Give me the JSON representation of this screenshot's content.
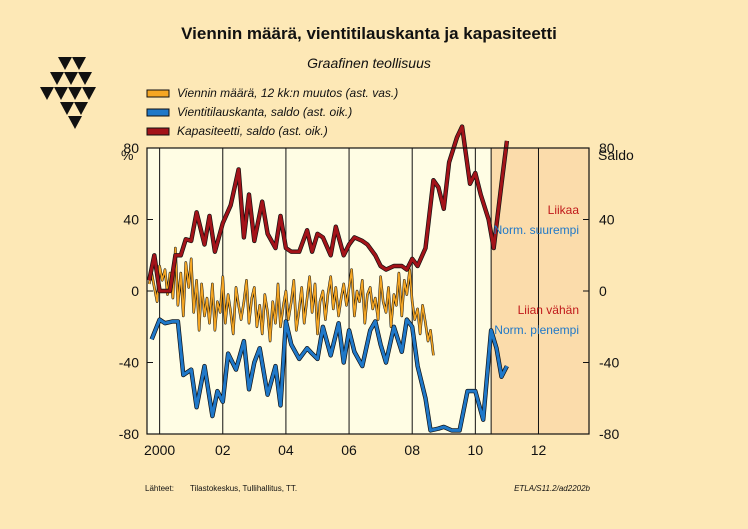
{
  "chart_data": {
    "type": "line",
    "title": "Viennin määrä, vientitilauskanta ja kapasiteetti",
    "subtitle": "Graafinen teollisuus",
    "y_left_label": "%",
    "y_right_label": "Saldo",
    "ylim": [
      -80,
      80
    ],
    "y_ticks": [
      -80,
      -40,
      0,
      40,
      80
    ],
    "y_tick_labels": [
      "-80",
      "-40",
      "0",
      "40",
      "80"
    ],
    "xlim": [
      1999.6,
      2013.6
    ],
    "x_ticks": [
      2000,
      2002,
      2004,
      2006,
      2008,
      2010,
      2012
    ],
    "x_tick_labels": [
      "2000",
      "02",
      "04",
      "06",
      "08",
      "10",
      "12"
    ],
    "forecast_start": 2010.5,
    "forecast_color": "#fbdcab",
    "plot_background": "#fffde4",
    "legend": [
      {
        "label": "Viennin määrä, 12 kk:n muutos (ast. vas.)",
        "color": "#f5a623"
      },
      {
        "label": "Vientitilauskanta, saldo (ast. oik.)",
        "color": "#1f78c8"
      },
      {
        "label": "Kapasiteetti, saldo (ast. oik.)",
        "color": "#a31319"
      }
    ],
    "annotations": [
      {
        "text": "Liikaa",
        "color": "#c0181a",
        "y": 43
      },
      {
        "text": "Norm. suurempi",
        "color": "#1f78c8",
        "y": 32
      },
      {
        "text": "Liian vähän",
        "color": "#c0181a",
        "y": -13
      },
      {
        "text": "Norm. pienempi",
        "color": "#1f78c8",
        "y": -24
      }
    ],
    "series": [
      {
        "name": "Viennin määrä, 12 kk:n muutos (ast. vas.)",
        "color": "#f5a623",
        "x": [
          1999.67,
          1999.75,
          1999.83,
          1999.92,
          2000.0,
          2000.08,
          2000.17,
          2000.25,
          2000.33,
          2000.42,
          2000.5,
          2000.58,
          2000.67,
          2000.75,
          2000.83,
          2000.92,
          2001.0,
          2001.08,
          2001.17,
          2001.25,
          2001.33,
          2001.42,
          2001.5,
          2001.58,
          2001.67,
          2001.75,
          2001.83,
          2001.92,
          2002.0,
          2002.08,
          2002.17,
          2002.25,
          2002.33,
          2002.42,
          2002.5,
          2002.58,
          2002.67,
          2002.75,
          2002.83,
          2002.92,
          2003.0,
          2003.08,
          2003.17,
          2003.25,
          2003.33,
          2003.42,
          2003.5,
          2003.58,
          2003.67,
          2003.75,
          2003.83,
          2003.92,
          2004.0,
          2004.08,
          2004.17,
          2004.25,
          2004.33,
          2004.42,
          2004.5,
          2004.58,
          2004.67,
          2004.75,
          2004.83,
          2004.92,
          2005.0,
          2005.08,
          2005.17,
          2005.25,
          2005.33,
          2005.42,
          2005.5,
          2005.58,
          2005.67,
          2005.75,
          2005.83,
          2005.92,
          2006.0,
          2006.08,
          2006.17,
          2006.25,
          2006.33,
          2006.42,
          2006.5,
          2006.58,
          2006.67,
          2006.75,
          2006.83,
          2006.92,
          2007.0,
          2007.08,
          2007.17,
          2007.25,
          2007.33,
          2007.42,
          2007.5,
          2007.58,
          2007.67,
          2007.75,
          2007.83,
          2007.92,
          2008.0,
          2008.08,
          2008.17,
          2008.25,
          2008.33,
          2008.42,
          2008.5,
          2008.58,
          2008.67
        ],
        "y": [
          4,
          10,
          2,
          -6,
          14,
          6,
          12,
          -2,
          10,
          -4,
          24,
          -8,
          10,
          -14,
          16,
          2,
          18,
          -12,
          6,
          -22,
          4,
          -14,
          -4,
          -18,
          4,
          -22,
          -6,
          -12,
          8,
          -18,
          -2,
          -12,
          -24,
          2,
          -8,
          -16,
          -6,
          6,
          -18,
          -4,
          2,
          -20,
          -8,
          -24,
          -2,
          -12,
          -28,
          -6,
          -18,
          4,
          -20,
          -8,
          0,
          -16,
          -6,
          6,
          -22,
          -10,
          2,
          -18,
          -4,
          8,
          -12,
          4,
          -24,
          -6,
          0,
          -16,
          -2,
          8,
          -10,
          2,
          -14,
          -4,
          4,
          -8,
          2,
          12,
          -14,
          0,
          -6,
          6,
          -18,
          -2,
          2,
          -10,
          -4,
          -16,
          8,
          -6,
          -12,
          2,
          -20,
          -2,
          -8,
          10,
          -14,
          6,
          -2,
          12,
          -6,
          -16,
          -10,
          -24,
          -8,
          -18,
          -28,
          -22,
          -36
        ]
      },
      {
        "name": "Vientitilauskanta, saldo (ast. oik.)",
        "color": "#1f78c8",
        "x": [
          1999.75,
          2000.0,
          2000.17,
          2000.42,
          2000.58,
          2000.75,
          2001.0,
          2001.17,
          2001.42,
          2001.67,
          2001.83,
          2002.0,
          2002.17,
          2002.42,
          2002.67,
          2002.83,
          2003.0,
          2003.17,
          2003.42,
          2003.67,
          2003.83,
          2004.0,
          2004.17,
          2004.42,
          2004.67,
          2004.83,
          2005.0,
          2005.17,
          2005.42,
          2005.67,
          2005.83,
          2006.0,
          2006.17,
          2006.42,
          2006.67,
          2006.83,
          2007.0,
          2007.17,
          2007.42,
          2007.67,
          2007.83,
          2008.0,
          2008.17,
          2008.42,
          2008.58,
          2008.83,
          2009.0,
          2009.25,
          2009.5,
          2009.75,
          2010.0,
          2010.25,
          2010.5,
          2010.67,
          2010.83,
          2011.0
        ],
        "y": [
          -27,
          -16,
          -18,
          -17,
          -17,
          -47,
          -44,
          -65,
          -42,
          -70,
          -56,
          -62,
          -35,
          -44,
          -28,
          -55,
          -40,
          -32,
          -58,
          -42,
          -64,
          -17,
          -30,
          -38,
          -32,
          -35,
          -38,
          -20,
          -36,
          -18,
          -40,
          -22,
          -34,
          -42,
          -22,
          -17,
          -30,
          -40,
          -20,
          -34,
          -16,
          -20,
          -42,
          -60,
          -78,
          -77,
          -76,
          -78,
          -78,
          -56,
          -56,
          -72,
          -22,
          -32,
          -48,
          -42
        ]
      },
      {
        "name": "Kapasiteetti, saldo (ast. oik.)",
        "color": "#a31319",
        "x": [
          1999.67,
          1999.83,
          2000.0,
          2000.17,
          2000.33,
          2000.5,
          2000.67,
          2000.83,
          2001.0,
          2001.17,
          2001.42,
          2001.58,
          2001.75,
          2002.0,
          2002.25,
          2002.5,
          2002.67,
          2002.83,
          2003.0,
          2003.25,
          2003.42,
          2003.67,
          2003.83,
          2004.0,
          2004.17,
          2004.42,
          2004.67,
          2004.83,
          2005.0,
          2005.17,
          2005.42,
          2005.58,
          2005.83,
          2006.0,
          2006.17,
          2006.42,
          2006.58,
          2006.83,
          2007.0,
          2007.17,
          2007.42,
          2007.67,
          2007.83,
          2008.0,
          2008.17,
          2008.42,
          2008.67,
          2008.83,
          2009.0,
          2009.17,
          2009.42,
          2009.58,
          2009.83,
          2010.0,
          2010.17,
          2010.42,
          2010.58,
          2010.83,
          2011.0
        ],
        "y": [
          6,
          20,
          0,
          0,
          0,
          20,
          20,
          29,
          28,
          44,
          26,
          42,
          22,
          38,
          48,
          68,
          30,
          54,
          28,
          50,
          32,
          24,
          42,
          24,
          22,
          22,
          34,
          22,
          32,
          30,
          20,
          36,
          20,
          26,
          30,
          28,
          26,
          20,
          14,
          12,
          14,
          14,
          12,
          18,
          14,
          24,
          62,
          58,
          46,
          72,
          86,
          92,
          60,
          66,
          54,
          40,
          24,
          60,
          84
        ]
      }
    ],
    "sources_label": "Lähteet:",
    "sources": "Tilastokeskus, Tullihallitus, TT.",
    "code": "ETLA/S11.2/ad2202b"
  }
}
